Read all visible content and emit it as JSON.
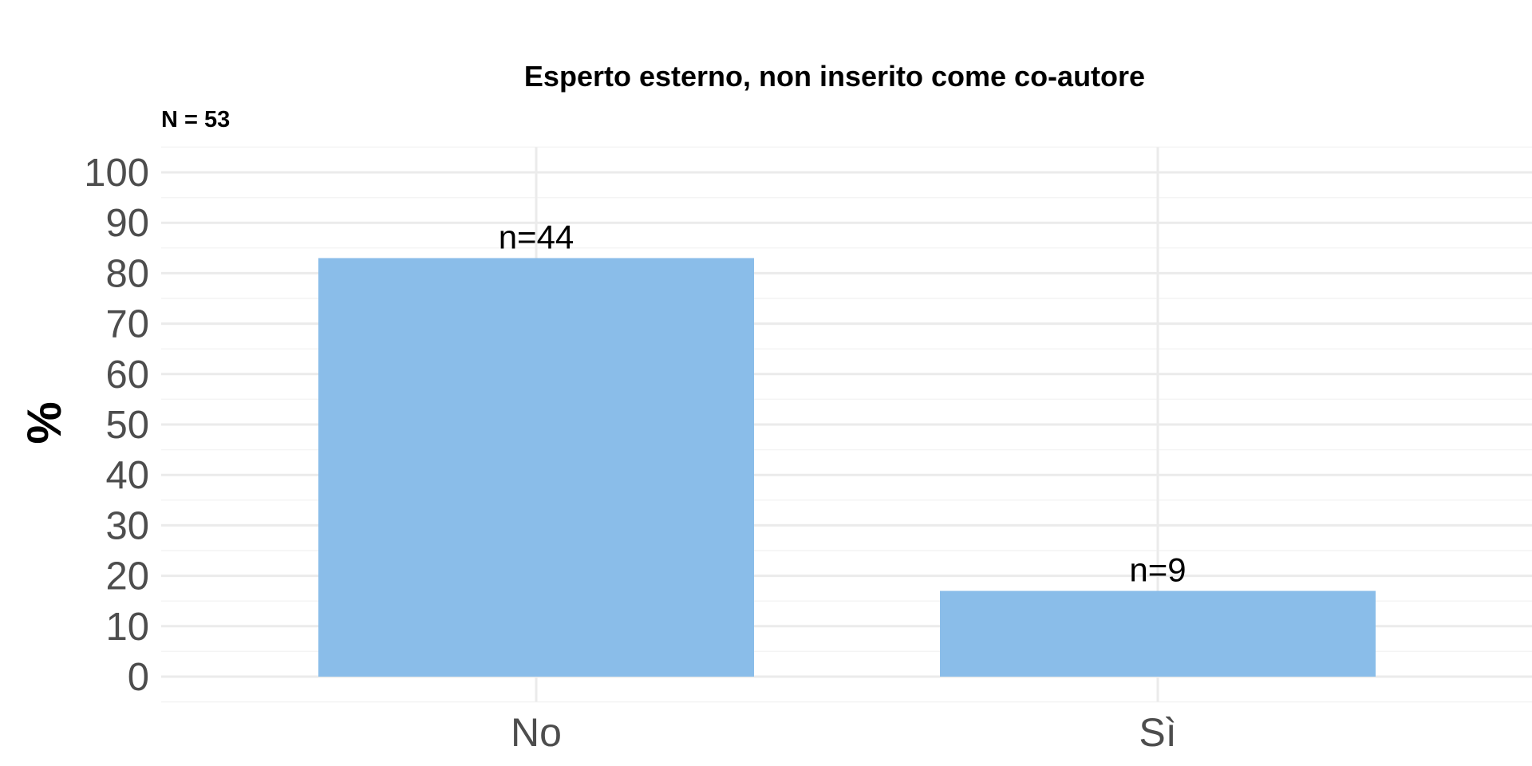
{
  "chart_data": {
    "type": "bar",
    "title": "Esperto esterno, non inserito come co-autore",
    "subtitle": "N = 53",
    "xlabel": "",
    "ylabel": "%",
    "categories": [
      "No",
      "Sì"
    ],
    "values": [
      83.0,
      17.0
    ],
    "data_labels": [
      "n=44",
      "n=9"
    ],
    "ylim": [
      0,
      100
    ],
    "y_ticks": [
      0,
      10,
      20,
      30,
      40,
      50,
      60,
      70,
      80,
      90,
      100
    ],
    "grid": true,
    "legend": "none",
    "colors": {
      "bar": "#8abde9",
      "grid_major": "#ebebeb",
      "grid_minor": "#f4f4f4",
      "tick_text": "#4d4d4d"
    }
  }
}
